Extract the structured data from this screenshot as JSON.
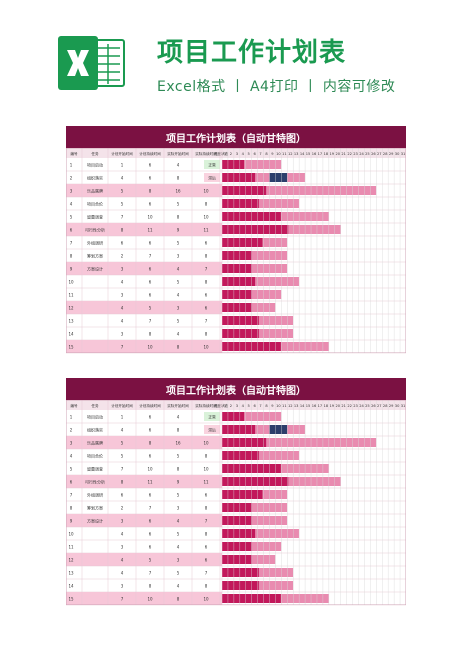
{
  "header": {
    "title": "项目工作计划表",
    "subtitle": "Excel格式 丨 A4打印 丨 内容可修改"
  },
  "sheet": {
    "title": "项目工作计划表（自动甘特图）",
    "columns": [
      "编号",
      "任务",
      "计划开始时间",
      "计划持续时间",
      "实际开始时间",
      "实际持续时间",
      "进度状态"
    ],
    "day_numbers": [
      "1",
      "2",
      "3",
      "4",
      "5",
      "6",
      "7",
      "8",
      "9",
      "10",
      "11",
      "12",
      "13",
      "14",
      "15",
      "16",
      "17",
      "18",
      "19",
      "20",
      "21",
      "22",
      "23",
      "24",
      "25",
      "26",
      "27",
      "28",
      "29",
      "30",
      "31"
    ],
    "rows": [
      {
        "id": "1",
        "task": "项目启动",
        "plan_start": "1",
        "plan_dur": "6",
        "act_start": "4",
        "act_dur": "6",
        "status": "正常"
      },
      {
        "id": "2",
        "task": "组织落实",
        "plan_start": "4",
        "plan_dur": "6",
        "act_start": "8",
        "act_dur": "6",
        "status": "滞后"
      },
      {
        "id": "3",
        "task": "乐品属牌",
        "plan_start": "5",
        "plan_dur": "8",
        "act_start": "16",
        "act_dur": "10",
        "status": ""
      },
      {
        "id": "4",
        "task": "项目合伦",
        "plan_start": "5",
        "plan_dur": "6",
        "act_start": "5",
        "act_dur": "8",
        "status": ""
      },
      {
        "id": "5",
        "task": "留蕾调查",
        "plan_start": "7",
        "plan_dur": "10",
        "act_start": "8",
        "act_dur": "10",
        "status": ""
      },
      {
        "id": "6",
        "task": "可行性分析",
        "plan_start": "8",
        "plan_dur": "11",
        "act_start": "9",
        "act_dur": "11",
        "status": ""
      },
      {
        "id": "7",
        "task": "外组调研",
        "plan_start": "6",
        "plan_dur": "6",
        "act_start": "5",
        "act_dur": "6",
        "status": ""
      },
      {
        "id": "8",
        "task": "筹划方案",
        "plan_start": "2",
        "plan_dur": "7",
        "act_start": "3",
        "act_dur": "8",
        "status": ""
      },
      {
        "id": "9",
        "task": "方案设计",
        "plan_start": "3",
        "plan_dur": "6",
        "act_start": "4",
        "act_dur": "7",
        "status": ""
      },
      {
        "id": "10",
        "task": "",
        "plan_start": "4",
        "plan_dur": "6",
        "act_start": "5",
        "act_dur": "8",
        "status": ""
      },
      {
        "id": "11",
        "task": "",
        "plan_start": "3",
        "plan_dur": "6",
        "act_start": "4",
        "act_dur": "6",
        "status": ""
      },
      {
        "id": "12",
        "task": "",
        "plan_start": "4",
        "plan_dur": "5",
        "act_start": "3",
        "act_dur": "6",
        "status": ""
      },
      {
        "id": "13",
        "task": "",
        "plan_start": "4",
        "plan_dur": "7",
        "act_start": "5",
        "act_dur": "7",
        "status": ""
      },
      {
        "id": "14",
        "task": "",
        "plan_start": "3",
        "plan_dur": "8",
        "act_start": "4",
        "act_dur": "8",
        "status": ""
      },
      {
        "id": "15",
        "task": "",
        "plan_start": "7",
        "plan_dur": "10",
        "act_start": "8",
        "act_dur": "10",
        "status": ""
      }
    ]
  },
  "colors": {
    "brand_green": "#1a9a50",
    "title_band": "#7b1142",
    "plan_bar": "#c2185b",
    "actual_bar": "#e98bb0",
    "highlight_row": "#f7c6d8",
    "status_normal": "#d9f2d9",
    "status_late": "#f9d3df",
    "marker": "#2c3e6b"
  }
}
